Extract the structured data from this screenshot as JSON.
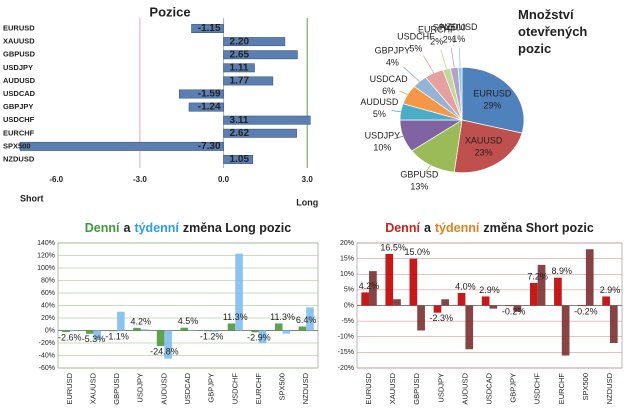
{
  "chart_data": [
    {
      "type": "hbar",
      "title": "Pozice",
      "categories": [
        "EURUSD",
        "XAUUSD",
        "GBPUSD",
        "USDJPY",
        "AUDUSD",
        "USDCAD",
        "GBPJPY",
        "USDCHF",
        "EURCHF",
        "SPX500",
        "NZDUSD"
      ],
      "values": [
        -1.15,
        2.2,
        2.65,
        1.11,
        1.77,
        -1.59,
        -1.24,
        3.11,
        2.62,
        -7.3,
        1.05
      ],
      "value_labels": [
        "-1.15",
        "2.20",
        "2.65",
        "1.11",
        "1.77",
        "-1.59",
        "-1.24",
        "3.11",
        "2.62",
        "-7.30",
        "1.05"
      ],
      "color": "#5b7fb0",
      "xlim": [
        -7.3,
        3.1
      ],
      "xticks": [
        {
          "value": -6,
          "label": "-6.0"
        },
        {
          "value": -3,
          "label": "-3.0"
        },
        {
          "value": 0,
          "label": "0.0"
        },
        {
          "value": 3,
          "label": "3.0"
        }
      ],
      "grid_colors": [
        "#ffffff",
        "#e6a8bc",
        "#b0b0b0",
        "#5aa04a"
      ],
      "xlabel_left": "Short",
      "xlabel_right": "Long"
    },
    {
      "type": "pie",
      "title": "Množství otevřených pozic",
      "categories": [
        "EURUSD",
        "XAUUSD",
        "GBPUSD",
        "USDJPY",
        "AUDUSD",
        "USDCAD",
        "GBPJPY",
        "USDCHF",
        "EURCHF",
        "SPX500",
        "NZDUSD"
      ],
      "values": [
        29,
        23,
        13,
        10,
        5,
        6,
        4,
        5,
        2,
        2,
        1
      ],
      "value_labels": [
        "29%",
        "23%",
        "13%",
        "10%",
        "5%",
        "6%",
        "4%",
        "5%",
        "2%",
        "2%",
        "1%"
      ],
      "colors": [
        "#4f81bd",
        "#c0504d",
        "#9bbb59",
        "#8064a2",
        "#4bacc6",
        "#f79646",
        "#95b3d7",
        "#e6a0a0",
        "#c3d69b",
        "#b3a2c7",
        "#93cddd"
      ]
    },
    {
      "type": "bar",
      "title_parts": [
        "Denní",
        "a",
        "týdenní",
        "změna Long pozic"
      ],
      "title_colors": [
        "#3c9a3c",
        "#222222",
        "#2aa0e0",
        "#222222"
      ],
      "categories": [
        "EURUSD",
        "XAUUSD",
        "GBPUSD",
        "USDJPY",
        "AUDUSD",
        "USDCAD",
        "GBPJPY",
        "USDCHF",
        "EURCHF",
        "SPX500",
        "NZDUSD"
      ],
      "series": [
        {
          "name": "Denní",
          "color": "#4a9a3a",
          "values": [
            -2.6,
            -5.3,
            -1.1,
            4.2,
            -24.8,
            4.5,
            -1.2,
            11.3,
            -2.9,
            11.3,
            6.4
          ],
          "value_labels": [
            "-2.6%",
            "-5.3%",
            "-1.1%",
            "4.2%",
            "-24.8%",
            "4.5%",
            "-1.2%",
            "11.3%",
            "-2.9%",
            "11.3%",
            "6.4%"
          ]
        },
        {
          "name": "týdenní",
          "color": "#7fbdf0",
          "values": [
            -1,
            -15,
            30,
            2,
            -45,
            1,
            -2,
            123,
            -20,
            -5,
            37
          ]
        }
      ],
      "ylim": [
        -60,
        140
      ],
      "yticks": [
        {
          "value": -60,
          "label": "-60%"
        },
        {
          "value": -40,
          "label": "-40%"
        },
        {
          "value": -20,
          "label": "-20%"
        },
        {
          "value": 0,
          "label": "0%"
        },
        {
          "value": 20,
          "label": "20%"
        },
        {
          "value": 40,
          "label": "40%"
        },
        {
          "value": 60,
          "label": "60%"
        },
        {
          "value": 80,
          "label": "80%"
        },
        {
          "value": 100,
          "label": "100%"
        },
        {
          "value": 120,
          "label": "120%"
        },
        {
          "value": 140,
          "label": "140%"
        }
      ],
      "grid": true,
      "grid_color": "#8fc07a"
    },
    {
      "type": "bar",
      "title_parts": [
        "Denní",
        "a",
        "týdenní",
        "změna Short pozic"
      ],
      "title_colors": [
        "#d02020",
        "#222222",
        "#e08020",
        "#222222"
      ],
      "categories": [
        "EURUSD",
        "XAUUSD",
        "GBPUSD",
        "USDJPY",
        "AUDUSD",
        "USDCAD",
        "GBPJPY",
        "USDCHF",
        "EURCHF",
        "SPX500",
        "NZDUSD"
      ],
      "series": [
        {
          "name": "Denní",
          "color": "#c00000",
          "values": [
            4.2,
            16.5,
            15.0,
            -2.3,
            4.0,
            2.9,
            -0.2,
            7.2,
            8.9,
            -0.2,
            2.9
          ],
          "value_labels": [
            "4.2%",
            "16.5%",
            "15.0%",
            "-2.3%",
            "4.0%",
            "2.9%",
            "-0.2%",
            "7.2%",
            "8.9%",
            "-0.2%",
            "2.9%"
          ]
        },
        {
          "name": "týdenní",
          "color": "#7a3030",
          "values": [
            11,
            2,
            -8,
            2,
            -14,
            -1,
            -2,
            13,
            -16,
            18,
            -12
          ]
        }
      ],
      "ylim": [
        -20,
        20
      ],
      "yticks": [
        {
          "value": -20,
          "label": "-20%"
        },
        {
          "value": -15,
          "label": "-15%"
        },
        {
          "value": -10,
          "label": "-10%"
        },
        {
          "value": -5,
          "label": "-5%"
        },
        {
          "value": 0,
          "label": "0%"
        },
        {
          "value": 5,
          "label": "5%"
        },
        {
          "value": 10,
          "label": "10%"
        },
        {
          "value": 15,
          "label": "15%"
        },
        {
          "value": 20,
          "label": "20%"
        }
      ],
      "grid": true,
      "grid_color": "#d08080"
    }
  ]
}
